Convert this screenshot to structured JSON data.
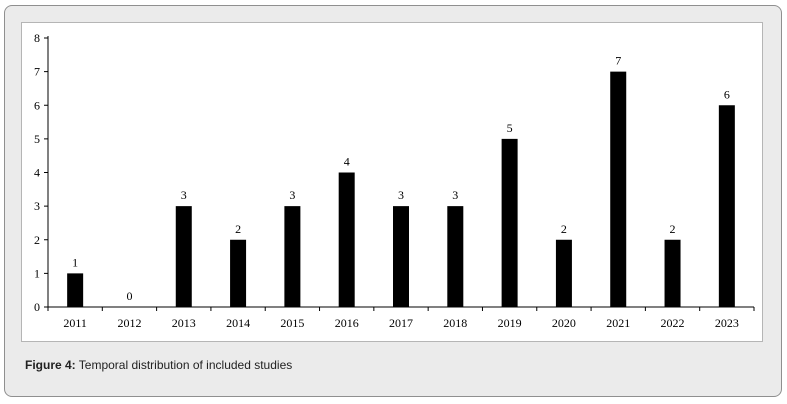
{
  "caption": {
    "label": "Figure 4:",
    "text": " Temporal distribution of included studies"
  },
  "chart_data": {
    "type": "bar",
    "categories": [
      "2011",
      "2012",
      "2013",
      "2014",
      "2015",
      "2016",
      "2017",
      "2018",
      "2019",
      "2020",
      "2021",
      "2022",
      "2023"
    ],
    "values": [
      1,
      0,
      3,
      2,
      3,
      4,
      3,
      3,
      5,
      2,
      7,
      2,
      6
    ],
    "title": "",
    "xlabel": "",
    "ylabel": "",
    "ylim": [
      0,
      8
    ],
    "yticks": [
      0,
      1,
      2,
      3,
      4,
      5,
      6,
      7,
      8
    ],
    "bar_color": "#000000",
    "grid": false,
    "data_labels": true
  }
}
